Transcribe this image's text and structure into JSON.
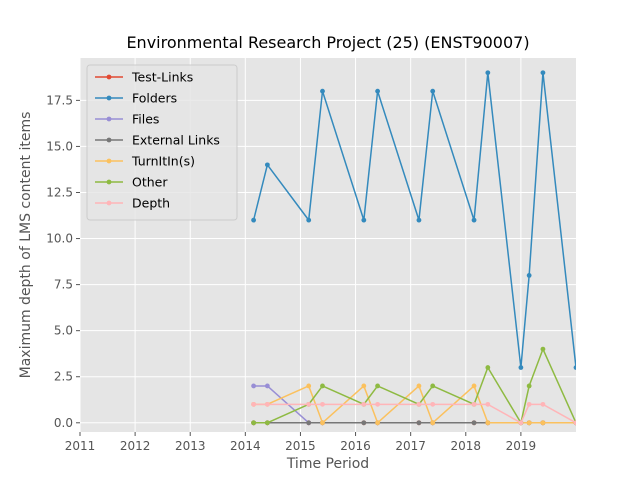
{
  "chart_data": {
    "type": "line",
    "title": "Environmental Research Project (25) (ENST90007)",
    "xlabel": "Time Period",
    "ylabel": "Maximum depth of LMS content items",
    "xlim": [
      2011.0,
      2020.0
    ],
    "ylim": [
      -0.5,
      19.8
    ],
    "x_ticks": [
      2011,
      2012,
      2013,
      2014,
      2015,
      2016,
      2017,
      2018,
      2019
    ],
    "x_tick_labels": [
      "2011",
      "2012",
      "2013",
      "2014",
      "2015",
      "2016",
      "2017",
      "2018",
      "2019"
    ],
    "y_ticks": [
      0.0,
      2.5,
      5.0,
      7.5,
      10.0,
      12.5,
      15.0,
      17.5
    ],
    "y_tick_labels": [
      "0.0",
      "2.5",
      "5.0",
      "7.5",
      "10.0",
      "12.5",
      "15.0",
      "17.5"
    ],
    "grid": true,
    "legend_position": "top-left",
    "series": [
      {
        "name": "Test-Links",
        "color": "#E24A33",
        "x": [
          2014.15,
          2014.4,
          2015.15,
          2015.4,
          2016.15,
          2016.4,
          2017.15,
          2017.4,
          2018.15,
          2018.4,
          2019.0,
          2019.15,
          2019.4,
          2020.0
        ],
        "y": [
          0,
          0,
          0,
          0,
          0,
          0,
          0,
          0,
          0,
          0,
          0,
          0,
          0,
          0
        ]
      },
      {
        "name": "Folders",
        "color": "#348ABD",
        "x": [
          2014.15,
          2014.4,
          2015.15,
          2015.4,
          2016.15,
          2016.4,
          2017.15,
          2017.4,
          2018.15,
          2018.4,
          2019.0,
          2019.15,
          2019.4,
          2020.0
        ],
        "y": [
          11,
          14,
          11,
          18,
          11,
          18,
          11,
          18,
          11,
          19,
          3,
          8,
          19,
          3
        ]
      },
      {
        "name": "Files",
        "color": "#988ED5",
        "x": [
          2014.15,
          2014.4,
          2015.15
        ],
        "y": [
          2,
          2,
          0
        ]
      },
      {
        "name": "External Links",
        "color": "#777777",
        "x": [
          2014.15,
          2014.4,
          2015.15,
          2015.4,
          2016.15,
          2016.4,
          2017.15,
          2017.4,
          2018.15,
          2018.4,
          2019.0,
          2019.15,
          2019.4,
          2020.0
        ],
        "y": [
          0,
          0,
          0,
          0,
          0,
          0,
          0,
          0,
          0,
          0,
          0,
          0,
          0,
          0
        ]
      },
      {
        "name": "TurnItIn(s)",
        "color": "#FBC15E",
        "x": [
          2014.15,
          2014.4,
          2015.15,
          2015.4,
          2016.15,
          2016.4,
          2017.15,
          2017.4,
          2018.15,
          2018.4,
          2019.0,
          2019.15,
          2019.4,
          2020.0
        ],
        "y": [
          1,
          1,
          2,
          0,
          2,
          0,
          2,
          0,
          2,
          0,
          0,
          0,
          0,
          0
        ]
      },
      {
        "name": "Other",
        "color": "#8EBA42",
        "x": [
          2014.15,
          2014.4,
          2015.15,
          2015.4,
          2016.15,
          2016.4,
          2017.15,
          2017.4,
          2018.15,
          2018.4,
          2019.0,
          2019.15,
          2019.4,
          2020.0
        ],
        "y": [
          0,
          0,
          1,
          2,
          1,
          2,
          1,
          2,
          1,
          3,
          0,
          2,
          4,
          0
        ]
      },
      {
        "name": "Depth",
        "color": "#FFB5B8",
        "x": [
          2014.15,
          2014.4,
          2015.15,
          2015.4,
          2016.15,
          2016.4,
          2017.15,
          2017.4,
          2018.15,
          2018.4,
          2019.0,
          2019.15,
          2019.4,
          2020.0
        ],
        "y": [
          1,
          1,
          1,
          1,
          1,
          1,
          1,
          1,
          1,
          1,
          0,
          1,
          1,
          0
        ]
      }
    ]
  }
}
